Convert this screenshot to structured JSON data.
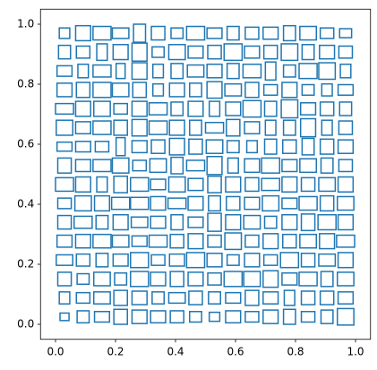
{
  "chart_data": {
    "type": "rectangles",
    "color": "#1f77b4",
    "xlim": [
      -0.05,
      1.05
    ],
    "ylim": [
      -0.05,
      1.05
    ],
    "xticks": [
      {
        "value": 0,
        "label": "0.0"
      },
      0.2,
      0.4,
      0.6,
      0.8,
      {
        "value": 1,
        "label": "1.0"
      }
    ],
    "yticks": [
      {
        "value": 0,
        "label": "0.0"
      },
      0.2,
      0.4,
      0.6,
      0.8,
      {
        "value": 1,
        "label": "1.0"
      }
    ],
    "x_centers": [
      0.03,
      0.092,
      0.155,
      0.217,
      0.28,
      0.342,
      0.405,
      0.467,
      0.53,
      0.592,
      0.655,
      0.717,
      0.78,
      0.842,
      0.905,
      0.967
    ],
    "y_centers": [
      0.97,
      0.907,
      0.844,
      0.781,
      0.718,
      0.655,
      0.592,
      0.529,
      0.466,
      0.403,
      0.34,
      0.277,
      0.214,
      0.151,
      0.088,
      0.025
    ],
    "widths": [
      [
        0.035,
        0.05,
        0.06,
        0.055,
        0.04,
        0.045,
        0.04,
        0.06,
        0.05,
        0.04,
        0.045,
        0.05,
        0.04,
        0.055,
        0.045,
        0.04
      ],
      [
        0.04,
        0.045,
        0.035,
        0.05,
        0.05,
        0.04,
        0.055,
        0.05,
        0.045,
        0.06,
        0.05,
        0.045,
        0.055,
        0.04,
        0.05,
        0.045
      ],
      [
        0.05,
        0.035,
        0.06,
        0.03,
        0.05,
        0.035,
        0.04,
        0.055,
        0.05,
        0.04,
        0.06,
        0.035,
        0.04,
        0.06,
        0.055,
        0.035
      ],
      [
        0.05,
        0.045,
        0.06,
        0.055,
        0.045,
        0.035,
        0.05,
        0.04,
        0.05,
        0.055,
        0.045,
        0.045,
        0.05,
        0.04,
        0.035,
        0.05
      ],
      [
        0.06,
        0.05,
        0.055,
        0.045,
        0.05,
        0.06,
        0.04,
        0.05,
        0.035,
        0.05,
        0.06,
        0.04,
        0.055,
        0.05,
        0.045,
        0.04
      ],
      [
        0.055,
        0.05,
        0.06,
        0.045,
        0.05,
        0.06,
        0.05,
        0.04,
        0.06,
        0.045,
        0.05,
        0.035,
        0.04,
        0.05,
        0.035,
        0.045
      ],
      [
        0.05,
        0.05,
        0.045,
        0.03,
        0.05,
        0.045,
        0.05,
        0.045,
        0.055,
        0.04,
        0.035,
        0.04,
        0.045,
        0.04,
        0.045,
        0.05
      ],
      [
        0.045,
        0.05,
        0.06,
        0.055,
        0.045,
        0.055,
        0.04,
        0.06,
        0.05,
        0.035,
        0.05,
        0.06,
        0.05,
        0.055,
        0.04,
        0.045
      ],
      [
        0.06,
        0.05,
        0.035,
        0.045,
        0.06,
        0.05,
        0.055,
        0.05,
        0.045,
        0.05,
        0.045,
        0.06,
        0.05,
        0.045,
        0.055,
        0.05
      ],
      [
        0.045,
        0.055,
        0.05,
        0.06,
        0.06,
        0.05,
        0.06,
        0.05,
        0.04,
        0.045,
        0.05,
        0.055,
        0.05,
        0.06,
        0.045,
        0.055
      ],
      [
        0.045,
        0.06,
        0.04,
        0.05,
        0.055,
        0.05,
        0.04,
        0.05,
        0.045,
        0.05,
        0.055,
        0.04,
        0.05,
        0.045,
        0.06,
        0.05
      ],
      [
        0.05,
        0.05,
        0.06,
        0.055,
        0.05,
        0.06,
        0.045,
        0.05,
        0.045,
        0.055,
        0.045,
        0.05,
        0.045,
        0.055,
        0.05,
        0.06
      ],
      [
        0.055,
        0.045,
        0.04,
        0.05,
        0.06,
        0.045,
        0.05,
        0.06,
        0.05,
        0.04,
        0.05,
        0.045,
        0.06,
        0.045,
        0.055,
        0.05
      ],
      [
        0.045,
        0.04,
        0.055,
        0.04,
        0.06,
        0.05,
        0.045,
        0.05,
        0.045,
        0.06,
        0.055,
        0.05,
        0.05,
        0.06,
        0.04,
        0.055
      ],
      [
        0.035,
        0.045,
        0.055,
        0.045,
        0.05,
        0.04,
        0.055,
        0.045,
        0.04,
        0.05,
        0.045,
        0.05,
        0.035,
        0.045,
        0.045,
        0.05
      ],
      [
        0.03,
        0.04,
        0.05,
        0.045,
        0.05,
        0.05,
        0.045,
        0.04,
        0.035,
        0.05,
        0.045,
        0.05,
        0.04,
        0.045,
        0.04,
        0.055
      ]
    ],
    "heights": [
      [
        0.035,
        0.05,
        0.045,
        0.035,
        0.06,
        0.045,
        0.035,
        0.045,
        0.035,
        0.045,
        0.04,
        0.04,
        0.05,
        0.045,
        0.035,
        0.03
      ],
      [
        0.045,
        0.04,
        0.055,
        0.05,
        0.06,
        0.035,
        0.05,
        0.04,
        0.045,
        0.055,
        0.04,
        0.045,
        0.055,
        0.05,
        0.045,
        0.04
      ],
      [
        0.035,
        0.045,
        0.04,
        0.05,
        0.055,
        0.045,
        0.05,
        0.04,
        0.045,
        0.05,
        0.045,
        0.06,
        0.04,
        0.05,
        0.055,
        0.045
      ],
      [
        0.045,
        0.05,
        0.05,
        0.045,
        0.05,
        0.04,
        0.045,
        0.045,
        0.055,
        0.04,
        0.05,
        0.035,
        0.05,
        0.035,
        0.04,
        0.035
      ],
      [
        0.035,
        0.05,
        0.05,
        0.035,
        0.05,
        0.04,
        0.045,
        0.05,
        0.05,
        0.045,
        0.055,
        0.05,
        0.06,
        0.04,
        0.045,
        0.045
      ],
      [
        0.05,
        0.04,
        0.045,
        0.05,
        0.055,
        0.045,
        0.05,
        0.05,
        0.035,
        0.055,
        0.04,
        0.05,
        0.05,
        0.06,
        0.05,
        0.045
      ],
      [
        0.03,
        0.035,
        0.035,
        0.06,
        0.04,
        0.045,
        0.055,
        0.05,
        0.045,
        0.04,
        0.04,
        0.05,
        0.045,
        0.055,
        0.05,
        0.045
      ],
      [
        0.05,
        0.04,
        0.04,
        0.05,
        0.035,
        0.045,
        0.055,
        0.035,
        0.06,
        0.05,
        0.045,
        0.05,
        0.04,
        0.045,
        0.05,
        0.04
      ],
      [
        0.045,
        0.05,
        0.05,
        0.055,
        0.045,
        0.035,
        0.05,
        0.04,
        0.055,
        0.05,
        0.045,
        0.04,
        0.05,
        0.045,
        0.045,
        0.05
      ],
      [
        0.035,
        0.05,
        0.05,
        0.04,
        0.04,
        0.045,
        0.035,
        0.045,
        0.05,
        0.045,
        0.04,
        0.05,
        0.035,
        0.045,
        0.05,
        0.045
      ],
      [
        0.045,
        0.04,
        0.045,
        0.05,
        0.035,
        0.04,
        0.05,
        0.035,
        0.06,
        0.05,
        0.045,
        0.04,
        0.05,
        0.055,
        0.05,
        0.05
      ],
      [
        0.04,
        0.045,
        0.045,
        0.04,
        0.035,
        0.04,
        0.045,
        0.05,
        0.04,
        0.055,
        0.04,
        0.05,
        0.045,
        0.045,
        0.05,
        0.04
      ],
      [
        0.035,
        0.04,
        0.045,
        0.04,
        0.05,
        0.035,
        0.04,
        0.05,
        0.045,
        0.035,
        0.045,
        0.035,
        0.05,
        0.045,
        0.04,
        0.05
      ],
      [
        0.045,
        0.035,
        0.045,
        0.04,
        0.05,
        0.045,
        0.05,
        0.045,
        0.04,
        0.05,
        0.05,
        0.055,
        0.04,
        0.045,
        0.05,
        0.045
      ],
      [
        0.04,
        0.035,
        0.04,
        0.05,
        0.045,
        0.04,
        0.035,
        0.045,
        0.04,
        0.035,
        0.05,
        0.04,
        0.05,
        0.045,
        0.045,
        0.04
      ],
      [
        0.025,
        0.04,
        0.035,
        0.05,
        0.045,
        0.04,
        0.04,
        0.035,
        0.03,
        0.04,
        0.035,
        0.045,
        0.05,
        0.035,
        0.045,
        0.055
      ]
    ]
  }
}
